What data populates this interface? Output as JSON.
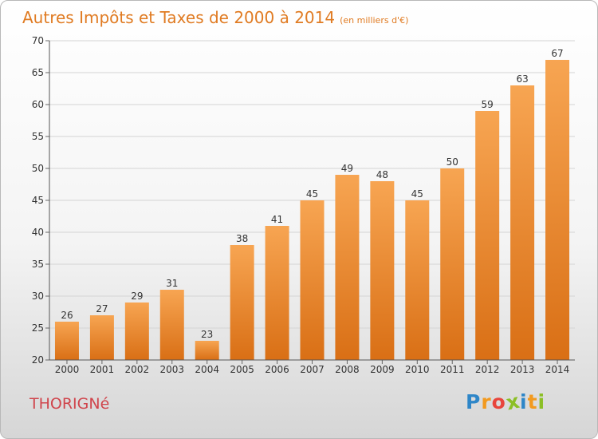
{
  "chart_data": {
    "type": "bar",
    "title": "Autres Impôts et Taxes de 2000 à 2014",
    "subtitle": "(en milliers d'€)",
    "categories": [
      "2000",
      "2001",
      "2002",
      "2003",
      "2004",
      "2005",
      "2006",
      "2007",
      "2008",
      "2009",
      "2010",
      "2011",
      "2012",
      "2013",
      "2014"
    ],
    "values": [
      26,
      27,
      29,
      31,
      23,
      38,
      41,
      45,
      49,
      48,
      45,
      50,
      59,
      63,
      67
    ],
    "ylim": [
      20,
      70
    ],
    "yticks": [
      20,
      25,
      30,
      35,
      40,
      45,
      50,
      55,
      60,
      65,
      70
    ],
    "grid": true,
    "bar_color": "#f0892e"
  },
  "commune": "THORIGNé",
  "logo": {
    "letters": [
      "P",
      "r",
      "o",
      "x",
      "i",
      "t",
      "i"
    ],
    "colors": [
      "#2e86c8",
      "#f29a1f",
      "#e8453c",
      "#8cbf26",
      "#2e86c8",
      "#f29a1f",
      "#8cbf26"
    ]
  }
}
